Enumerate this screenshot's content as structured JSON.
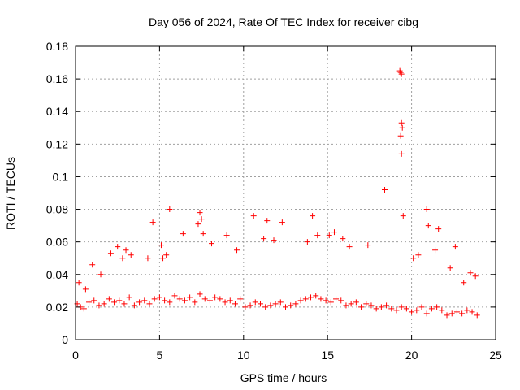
{
  "chart_data": {
    "type": "scatter",
    "title": "Day 056 of 2024, Rate Of TEC Index for receiver cibg",
    "xlabel": "GPS time / hours",
    "ylabel": "ROTI / TECUs",
    "xlim": [
      0,
      25
    ],
    "ylim": [
      0,
      0.18
    ],
    "xticks": [
      0,
      5,
      10,
      15,
      20,
      25
    ],
    "xtick_labels": [
      "0",
      "5",
      "10",
      "15",
      "20",
      "25"
    ],
    "yticks": [
      0,
      0.02,
      0.04,
      0.06,
      0.08,
      0.1,
      0.12,
      0.14,
      0.16,
      0.18
    ],
    "ytick_labels": [
      "0",
      "0.02",
      "0.04",
      "0.06",
      "0.08",
      "0.1",
      "0.12",
      "0.14",
      "0.16",
      "0.18"
    ],
    "grid": true,
    "marker": "+",
    "color": "#ff0000",
    "series": [
      {
        "x": [
          0.1,
          0.3,
          0.5,
          0.8,
          1.1,
          1.4,
          1.7,
          2.0,
          2.3,
          2.6,
          2.9,
          3.2,
          3.5,
          3.8,
          4.1,
          4.4,
          4.7,
          5.0,
          5.3,
          5.6,
          5.9,
          6.2,
          6.5,
          6.8,
          7.1,
          7.4,
          7.7,
          8.0,
          8.3,
          8.6,
          8.9,
          9.2,
          9.5,
          9.8,
          10.1,
          10.4,
          10.7,
          11.0,
          11.3,
          11.6,
          11.9,
          12.2,
          12.5,
          12.8,
          13.1,
          13.4,
          13.7,
          14.0,
          14.3,
          14.6,
          14.9,
          15.2,
          15.5,
          15.8,
          16.1,
          16.4,
          16.7,
          17.0,
          17.3,
          17.6,
          17.9,
          18.2,
          18.5,
          18.8,
          19.1,
          19.4,
          19.7,
          20.0,
          20.3,
          20.6,
          20.9,
          21.2,
          21.5,
          21.8,
          22.1,
          22.4,
          22.7,
          23.0,
          23.3,
          23.6,
          23.9,
          0.2,
          0.6,
          1.0,
          1.5,
          2.1,
          2.5,
          2.8,
          3.0,
          3.3,
          4.3,
          4.6,
          5.1,
          5.2,
          5.4,
          5.6,
          6.4,
          7.3,
          7.4,
          7.5,
          7.6,
          8.1,
          9.0,
          9.6,
          10.6,
          11.2,
          11.4,
          11.8,
          12.3,
          13.8,
          14.1,
          14.4,
          15.1,
          15.4,
          15.9,
          16.3,
          17.4,
          18.4,
          19.3,
          19.35,
          19.4,
          19.4,
          19.45,
          19.35,
          19.4,
          19.5,
          20.1,
          20.4,
          20.9,
          21.0,
          21.4,
          21.6,
          22.3,
          22.6,
          23.1,
          23.5,
          23.8
        ],
        "y": [
          0.022,
          0.02,
          0.019,
          0.023,
          0.024,
          0.021,
          0.022,
          0.025,
          0.023,
          0.024,
          0.022,
          0.026,
          0.021,
          0.023,
          0.024,
          0.022,
          0.025,
          0.026,
          0.024,
          0.023,
          0.027,
          0.025,
          0.024,
          0.026,
          0.023,
          0.028,
          0.025,
          0.024,
          0.026,
          0.025,
          0.023,
          0.024,
          0.022,
          0.025,
          0.02,
          0.021,
          0.023,
          0.022,
          0.02,
          0.021,
          0.022,
          0.023,
          0.02,
          0.021,
          0.022,
          0.024,
          0.025,
          0.026,
          0.027,
          0.025,
          0.024,
          0.023,
          0.025,
          0.024,
          0.021,
          0.022,
          0.023,
          0.02,
          0.022,
          0.021,
          0.019,
          0.02,
          0.021,
          0.019,
          0.018,
          0.02,
          0.019,
          0.017,
          0.018,
          0.02,
          0.016,
          0.019,
          0.02,
          0.018,
          0.015,
          0.016,
          0.017,
          0.016,
          0.018,
          0.017,
          0.015,
          0.035,
          0.031,
          0.046,
          0.04,
          0.053,
          0.057,
          0.05,
          0.055,
          0.052,
          0.05,
          0.072,
          0.058,
          0.05,
          0.052,
          0.08,
          0.065,
          0.071,
          0.078,
          0.074,
          0.065,
          0.059,
          0.064,
          0.055,
          0.076,
          0.062,
          0.073,
          0.061,
          0.072,
          0.06,
          0.076,
          0.064,
          0.064,
          0.066,
          0.062,
          0.057,
          0.058,
          0.092,
          0.165,
          0.164,
          0.163,
          0.133,
          0.13,
          0.125,
          0.114,
          0.076,
          0.05,
          0.052,
          0.08,
          0.07,
          0.055,
          0.068,
          0.044,
          0.057,
          0.035,
          0.041,
          0.039
        ]
      }
    ]
  }
}
